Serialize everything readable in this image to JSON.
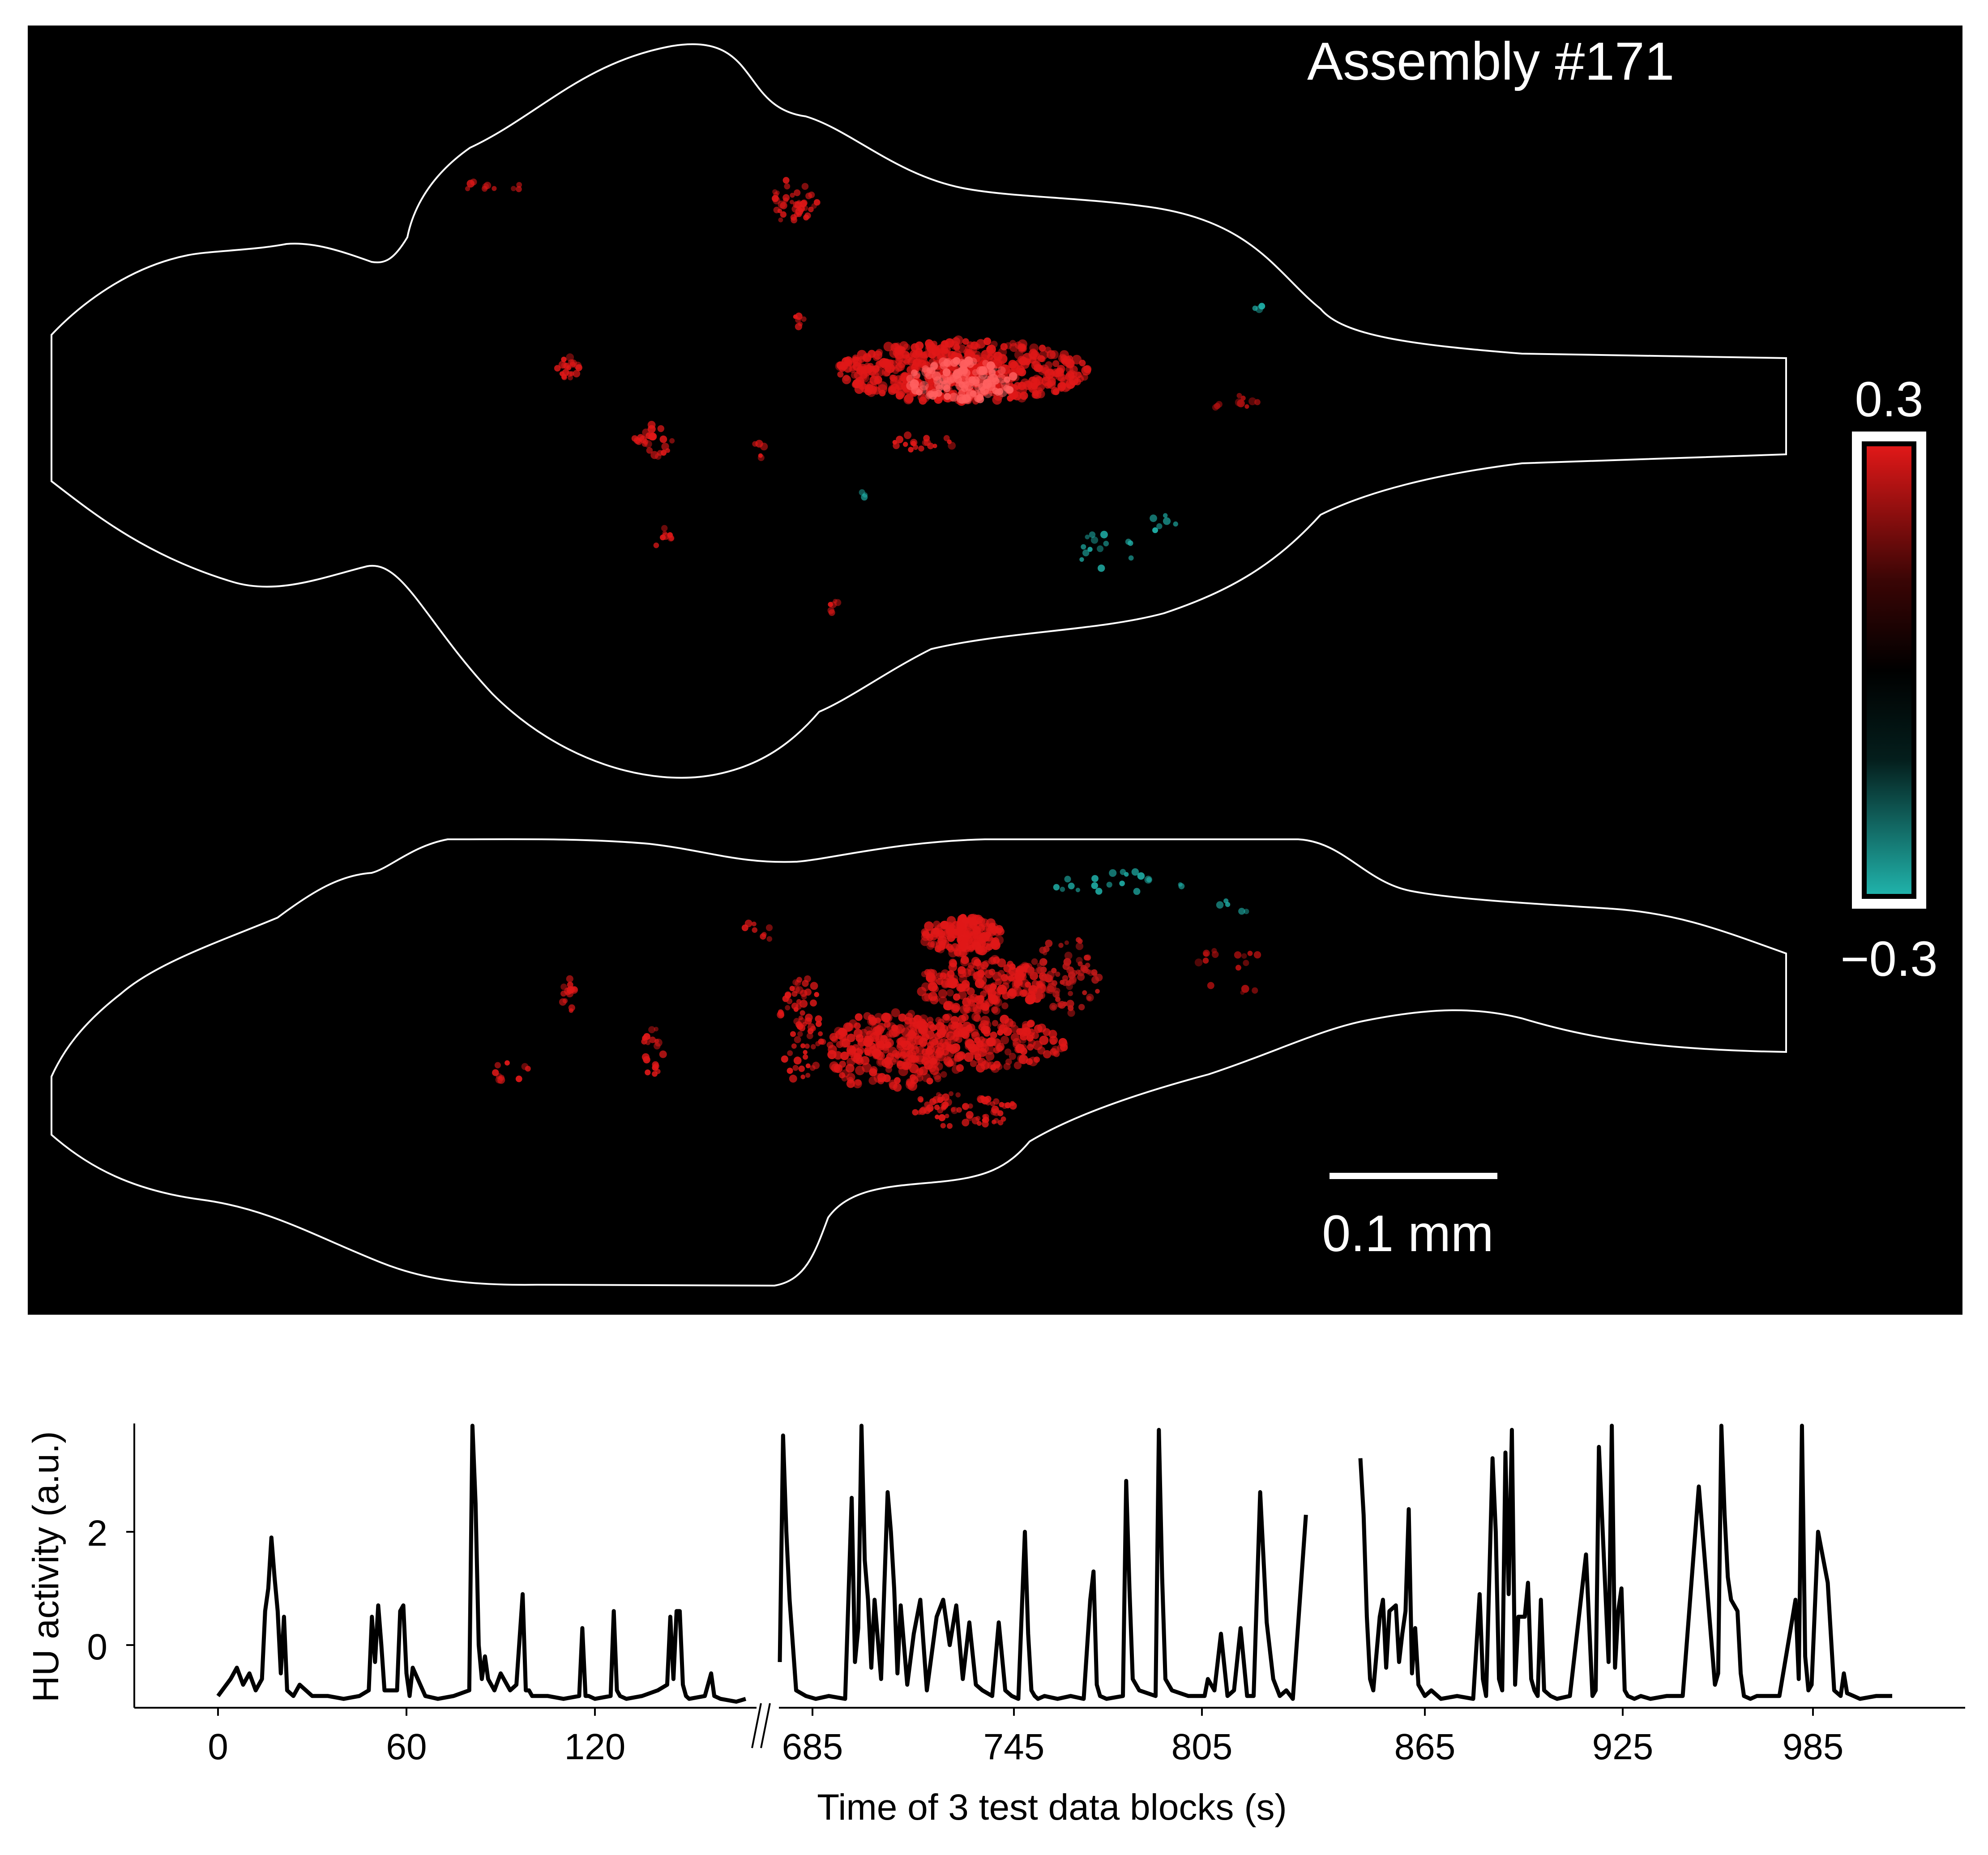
{
  "panel_title": "Assembly #171",
  "colorbar": {
    "max_label": "0.3",
    "min_label": "−0.3",
    "colors": {
      "positive": "#e01818",
      "mid": "#000000",
      "negative": "#20b2aa"
    }
  },
  "scale_bar": {
    "label": "0.1 mm"
  },
  "background_color": "#000000",
  "outline_color": "#ffffff",
  "trace_panel": {
    "ylabel": "HU activity (a.u.)",
    "xlabel": "Time of 3 test data blocks (s)",
    "break_mark": "//",
    "yticks": [
      "0",
      "2"
    ],
    "xticks": {
      "block1": [
        "0",
        "60",
        "120"
      ],
      "block2": [
        "685",
        "745",
        "805"
      ],
      "block3": [
        "865",
        "925",
        "985"
      ]
    }
  },
  "chart_data": {
    "type": "line",
    "xlabel": "Time of 3 test data blocks (s)",
    "ylabel": "HU activity (a.u.)",
    "ylim": [
      -1.1,
      3.9
    ],
    "series": [
      {
        "block": 1,
        "x": [
          0,
          4,
          6,
          8,
          10,
          12,
          14,
          15,
          16,
          17,
          18,
          19,
          20,
          21,
          22,
          24,
          26,
          30,
          35,
          40,
          45,
          48,
          49,
          50,
          51,
          52,
          53,
          57,
          58,
          59,
          60,
          61,
          62,
          66,
          70,
          75,
          80,
          81,
          82,
          83,
          84,
          85,
          86,
          88,
          90,
          93,
          95,
          97,
          98,
          99,
          100,
          105,
          110,
          115,
          116,
          117,
          118,
          120,
          125,
          126,
          127,
          128,
          130,
          135,
          140,
          143,
          144,
          145,
          146,
          147,
          148,
          149,
          150,
          155,
          157,
          158,
          160,
          165,
          168
        ],
        "y": [
          -0.9,
          -0.6,
          -0.4,
          -0.7,
          -0.5,
          -0.8,
          -0.6,
          0.6,
          1.0,
          1.9,
          1.2,
          0.6,
          -0.5,
          0.5,
          -0.8,
          -0.9,
          -0.7,
          -0.9,
          -0.9,
          -0.95,
          -0.9,
          -0.8,
          0.5,
          -0.3,
          0.7,
          0.0,
          -0.8,
          -0.8,
          0.6,
          0.7,
          -0.5,
          -0.9,
          -0.4,
          -0.9,
          -0.95,
          -0.9,
          -0.8,
          3.9,
          2.5,
          0.0,
          -0.6,
          -0.2,
          -0.6,
          -0.8,
          -0.5,
          -0.8,
          -0.7,
          0.9,
          -0.8,
          -0.8,
          -0.9,
          -0.9,
          -0.95,
          -0.9,
          0.3,
          -0.9,
          -0.9,
          -0.95,
          -0.9,
          0.6,
          -0.8,
          -0.9,
          -0.95,
          -0.9,
          -0.8,
          -0.7,
          0.5,
          -0.6,
          0.6,
          0.6,
          -0.7,
          -0.9,
          -0.95,
          -0.9,
          -0.5,
          -0.9,
          -0.95,
          -1.0,
          -0.95
        ]
      },
      {
        "block": 2,
        "x": [
          675,
          676,
          677,
          678,
          680,
          683,
          686,
          690,
          695,
          697,
          698,
          699,
          700,
          701,
          702,
          703,
          704,
          706,
          708,
          709,
          710,
          711,
          712,
          714,
          716,
          718,
          720,
          723,
          725,
          727,
          729,
          731,
          733,
          735,
          737,
          740,
          742,
          744,
          746,
          748,
          750,
          751,
          752,
          753,
          754,
          756,
          760,
          764,
          768,
          770,
          771,
          772,
          773,
          775,
          780,
          781,
          782,
          783,
          785,
          790,
          791,
          792,
          793,
          795,
          800,
          805,
          806,
          808,
          810,
          812,
          814,
          816,
          818,
          820,
          822,
          824,
          826,
          828,
          830,
          832,
          836
        ],
        "y": [
          -0.3,
          3.7,
          2.0,
          0.8,
          -0.8,
          -0.9,
          -0.95,
          -0.9,
          -0.95,
          2.6,
          -0.3,
          0.3,
          3.9,
          1.5,
          0.8,
          -0.4,
          0.8,
          -0.6,
          2.7,
          2.0,
          1.0,
          -0.5,
          0.7,
          -0.7,
          0.2,
          0.8,
          -0.8,
          0.5,
          0.8,
          0.0,
          0.7,
          -0.6,
          0.4,
          -0.7,
          -0.8,
          -0.9,
          0.4,
          -0.8,
          -0.9,
          -0.95,
          2.0,
          0.2,
          -0.8,
          -0.9,
          -0.95,
          -0.9,
          -0.95,
          -0.9,
          -0.95,
          0.8,
          1.3,
          -0.7,
          -0.9,
          -0.95,
          -0.9,
          2.9,
          1.0,
          -0.6,
          -0.8,
          -0.9,
          3.8,
          1.2,
          -0.6,
          -0.8,
          -0.9,
          -0.9,
          -0.6,
          -0.8,
          0.2,
          -0.9,
          -0.8,
          0.3,
          -0.9,
          -0.9,
          2.7,
          0.4,
          -0.6,
          -0.9,
          -0.8,
          -0.95,
          2.3
        ]
      },
      {
        "block": 3,
        "x": [
          845,
          846,
          847,
          848,
          849,
          851,
          852,
          853,
          854,
          856,
          857,
          858,
          859,
          860,
          861,
          862,
          863,
          865,
          867,
          870,
          875,
          880,
          882,
          883,
          884,
          886,
          887,
          888,
          889,
          890,
          891,
          892,
          893,
          894,
          896,
          897,
          898,
          899,
          900,
          901,
          902,
          904,
          906,
          910,
          915,
          917,
          918,
          919,
          922,
          923,
          924,
          925,
          926,
          927,
          928,
          930,
          932,
          935,
          940,
          945,
          950,
          955,
          956,
          957,
          958,
          959,
          960,
          962,
          963,
          964,
          966,
          968,
          975,
          980,
          981,
          982,
          983,
          984,
          985,
          987,
          990,
          992,
          994,
          995,
          996,
          998,
          1000,
          1005,
          1010
        ],
        "y": [
          3.3,
          2.3,
          0.5,
          -0.6,
          -0.8,
          0.5,
          0.8,
          -0.4,
          0.6,
          0.7,
          -0.3,
          0.2,
          0.6,
          2.4,
          -0.5,
          0.3,
          -0.7,
          -0.9,
          -0.8,
          -0.95,
          -0.9,
          -0.95,
          0.9,
          -0.6,
          -0.9,
          3.3,
          2.0,
          -0.6,
          -0.8,
          3.4,
          0.9,
          3.8,
          -0.7,
          0.5,
          0.5,
          1.1,
          -0.6,
          -0.8,
          -0.9,
          0.8,
          -0.8,
          -0.9,
          -0.95,
          -0.9,
          1.6,
          -0.9,
          -0.8,
          3.5,
          -0.3,
          3.9,
          -0.4,
          0.6,
          1.0,
          -0.8,
          -0.9,
          -0.95,
          -0.9,
          -0.95,
          -0.9,
          -0.9,
          2.8,
          -0.7,
          -0.5,
          3.9,
          2.3,
          1.2,
          0.8,
          0.6,
          -0.5,
          -0.9,
          -0.95,
          -0.9,
          -0.9,
          0.8,
          -0.6,
          3.9,
          -0.2,
          -0.8,
          -0.7,
          2.0,
          1.1,
          -0.8,
          -0.9,
          -0.5,
          -0.85,
          -0.9,
          -0.95,
          -0.9,
          -0.9
        ]
      }
    ]
  }
}
